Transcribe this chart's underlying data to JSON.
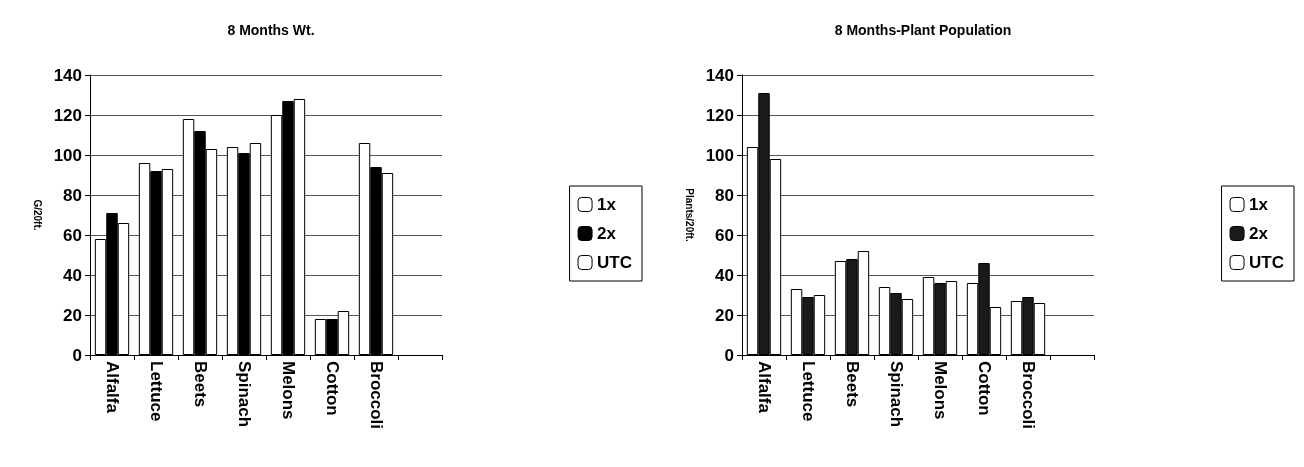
{
  "chart_data": [
    {
      "type": "bar",
      "title": "8 Months Wt.",
      "ylabel": "G/20ft.",
      "categories": [
        "Alfalfa",
        "Lettuce",
        "Beets",
        "Spinach",
        "Melons",
        "Cotton",
        "Broccoli",
        null
      ],
      "series": [
        {
          "name": "1x",
          "color": "#ffffff",
          "values": [
            58,
            96,
            118,
            104,
            120,
            18,
            106,
            null
          ]
        },
        {
          "name": "2x",
          "color": "#000000",
          "values": [
            71,
            92,
            112,
            101,
            127,
            18,
            94,
            null
          ]
        },
        {
          "name": "UTC",
          "color": "#ffffff",
          "values": [
            66,
            93,
            103,
            106,
            128,
            22,
            91,
            null
          ]
        }
      ],
      "ylim": [
        0,
        140
      ],
      "yticks": [
        0,
        20,
        40,
        60,
        80,
        100,
        120,
        140
      ],
      "grid": "y",
      "legend": "right"
    },
    {
      "type": "bar",
      "title": "8 Months-Plant Population",
      "ylabel": "Plants/20ft.",
      "categories": [
        "Alfalfa",
        "Lettuce",
        "Beets",
        "Spinach",
        "Melons",
        "Cotton",
        "Broccoli",
        null
      ],
      "series": [
        {
          "name": "1x",
          "color": "#ffffff",
          "values": [
            104,
            33,
            47,
            34,
            39,
            36,
            27,
            null
          ]
        },
        {
          "name": "2x",
          "color": "#1a1a1a",
          "values": [
            131,
            29,
            48,
            31,
            36,
            46,
            29,
            null
          ]
        },
        {
          "name": "UTC",
          "color": "#ffffff",
          "values": [
            98,
            30,
            52,
            28,
            37,
            24,
            26,
            null
          ]
        }
      ],
      "ylim": [
        0,
        140
      ],
      "yticks": [
        0,
        20,
        40,
        60,
        80,
        100,
        120,
        140
      ],
      "grid": "y",
      "legend": "right"
    }
  ]
}
